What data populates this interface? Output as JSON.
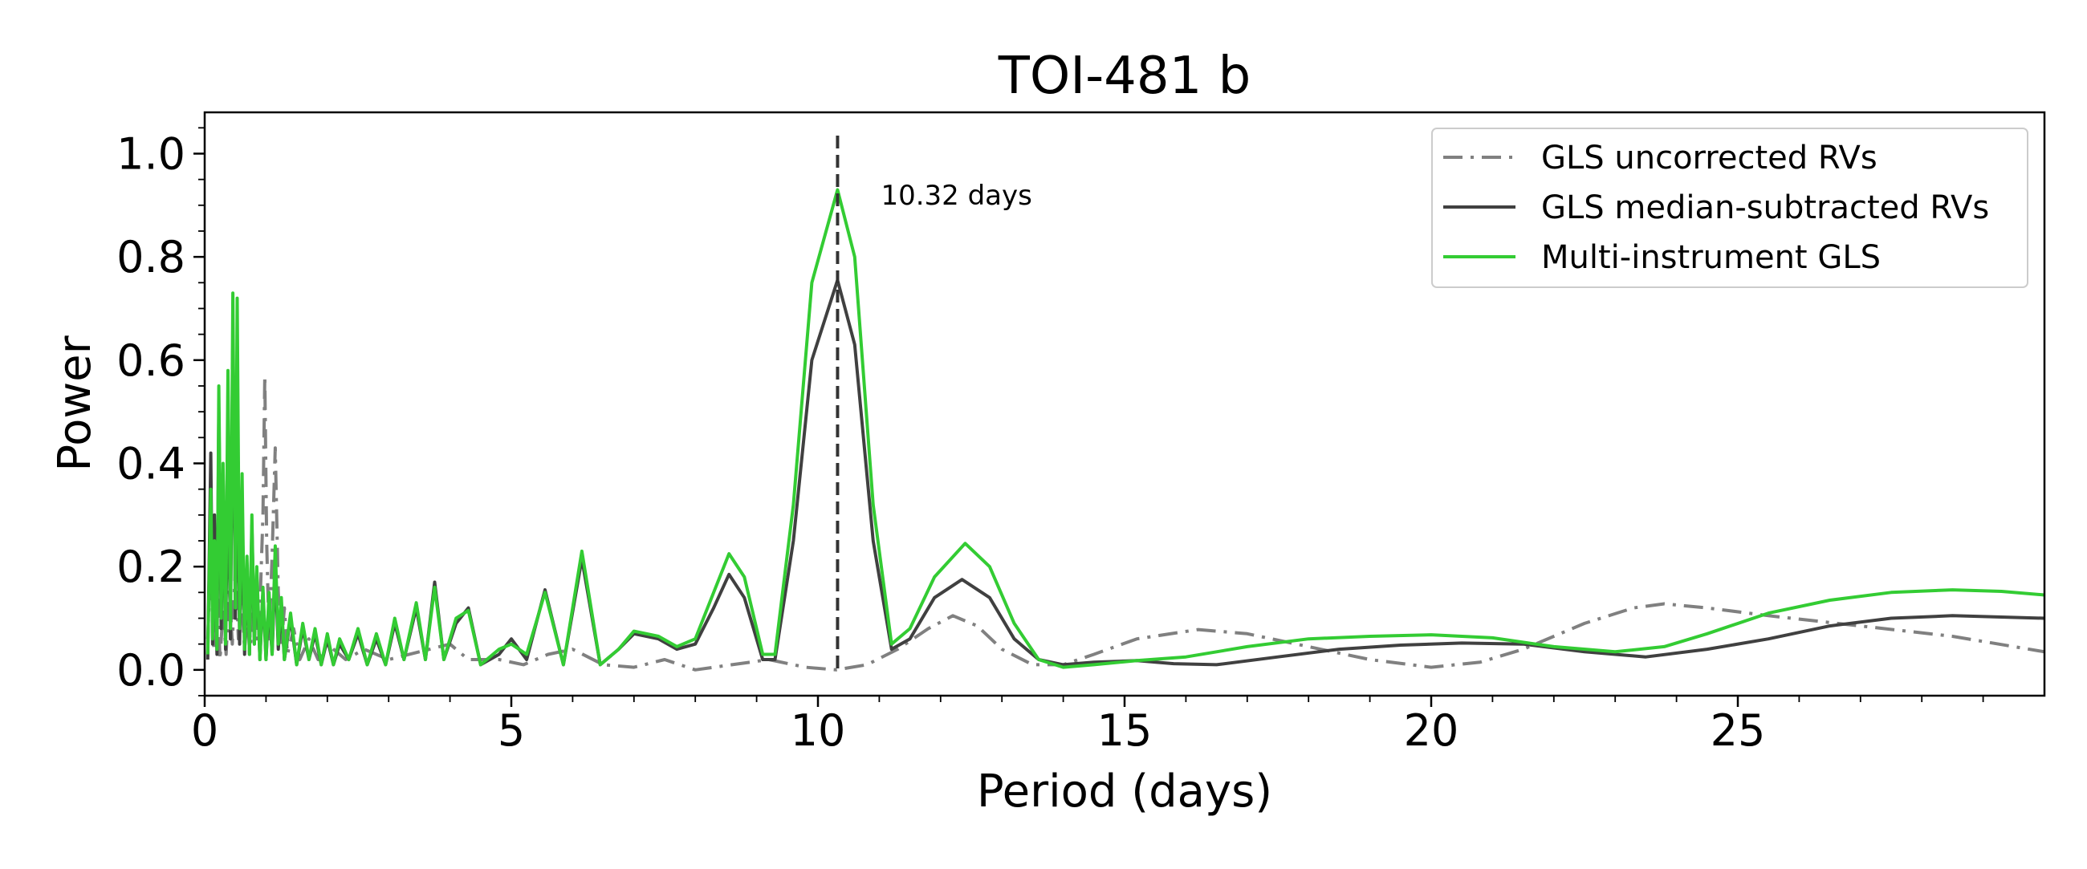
{
  "chart_data": {
    "type": "line",
    "title": "TOI-481 b",
    "xlabel": "Period (days)",
    "ylabel": "Power",
    "xlim": [
      0,
      30
    ],
    "ylim": [
      -0.05,
      1.08
    ],
    "xticks": [
      0,
      5,
      10,
      15,
      20,
      25
    ],
    "xtick_labels": [
      "0",
      "5",
      "10",
      "15",
      "20",
      "25"
    ],
    "yticks": [
      0.0,
      0.2,
      0.4,
      0.6,
      0.8,
      1.0
    ],
    "ytick_labels": [
      "0.0",
      "0.2",
      "0.4",
      "0.6",
      "0.8",
      "1.0"
    ],
    "grid": false,
    "legend_position": "top-right",
    "annotation": {
      "text": "10.32 days",
      "x": 10.32
    },
    "series": [
      {
        "name": "GLS uncorrected RVs",
        "color": "#808080",
        "style": "dashdot",
        "points": [
          [
            0.05,
            0.06
          ],
          [
            0.1,
            0.22
          ],
          [
            0.15,
            0.04
          ],
          [
            0.2,
            0.18
          ],
          [
            0.25,
            0.02
          ],
          [
            0.3,
            0.12
          ],
          [
            0.35,
            0.03
          ],
          [
            0.4,
            0.16
          ],
          [
            0.45,
            0.05
          ],
          [
            0.5,
            0.2
          ],
          [
            0.55,
            0.06
          ],
          [
            0.6,
            0.15
          ],
          [
            0.65,
            0.04
          ],
          [
            0.7,
            0.11
          ],
          [
            0.75,
            0.05
          ],
          [
            0.8,
            0.17
          ],
          [
            0.85,
            0.06
          ],
          [
            0.9,
            0.12
          ],
          [
            0.95,
            0.3
          ],
          [
            0.98,
            0.57
          ],
          [
            1.01,
            0.25
          ],
          [
            1.05,
            0.06
          ],
          [
            1.1,
            0.22
          ],
          [
            1.15,
            0.43
          ],
          [
            1.2,
            0.15
          ],
          [
            1.25,
            0.05
          ],
          [
            1.3,
            0.12
          ],
          [
            1.35,
            0.03
          ],
          [
            1.45,
            0.08
          ],
          [
            1.55,
            0.02
          ],
          [
            1.7,
            0.06
          ],
          [
            1.85,
            0.02
          ],
          [
            2.0,
            0.05
          ],
          [
            2.3,
            0.02
          ],
          [
            2.6,
            0.04
          ],
          [
            3.0,
            0.02
          ],
          [
            3.5,
            0.035
          ],
          [
            4.0,
            0.05
          ],
          [
            4.3,
            0.02
          ],
          [
            4.8,
            0.02
          ],
          [
            5.2,
            0.01
          ],
          [
            5.6,
            0.03
          ],
          [
            6.0,
            0.04
          ],
          [
            6.5,
            0.01
          ],
          [
            7.0,
            0.005
          ],
          [
            7.5,
            0.02
          ],
          [
            8.0,
            0.0
          ],
          [
            8.6,
            0.01
          ],
          [
            9.2,
            0.02
          ],
          [
            9.8,
            0.005
          ],
          [
            10.3,
            0.0
          ],
          [
            10.8,
            0.01
          ],
          [
            11.3,
            0.04
          ],
          [
            11.8,
            0.08
          ],
          [
            12.2,
            0.105
          ],
          [
            12.6,
            0.085
          ],
          [
            13.0,
            0.04
          ],
          [
            13.5,
            0.01
          ],
          [
            14.0,
            0.01
          ],
          [
            14.5,
            0.03
          ],
          [
            15.2,
            0.06
          ],
          [
            16.2,
            0.078
          ],
          [
            17.0,
            0.07
          ],
          [
            18.0,
            0.045
          ],
          [
            19.0,
            0.02
          ],
          [
            20.0,
            0.005
          ],
          [
            20.8,
            0.015
          ],
          [
            21.5,
            0.04
          ],
          [
            22.5,
            0.09
          ],
          [
            23.3,
            0.12
          ],
          [
            23.8,
            0.128
          ],
          [
            24.5,
            0.12
          ],
          [
            25.5,
            0.105
          ],
          [
            27.0,
            0.085
          ],
          [
            28.5,
            0.065
          ],
          [
            30.0,
            0.035
          ]
        ]
      },
      {
        "name": "GLS median-subtracted RVs",
        "color": "#404040",
        "style": "solid",
        "points": [
          [
            0.05,
            0.02
          ],
          [
            0.1,
            0.42
          ],
          [
            0.13,
            0.05
          ],
          [
            0.16,
            0.3
          ],
          [
            0.2,
            0.03
          ],
          [
            0.23,
            0.5
          ],
          [
            0.27,
            0.08
          ],
          [
            0.3,
            0.38
          ],
          [
            0.34,
            0.04
          ],
          [
            0.38,
            0.42
          ],
          [
            0.42,
            0.06
          ],
          [
            0.46,
            0.65
          ],
          [
            0.5,
            0.1
          ],
          [
            0.53,
            0.5
          ],
          [
            0.57,
            0.05
          ],
          [
            0.61,
            0.33
          ],
          [
            0.65,
            0.03
          ],
          [
            0.69,
            0.2
          ],
          [
            0.73,
            0.03
          ],
          [
            0.77,
            0.28
          ],
          [
            0.81,
            0.05
          ],
          [
            0.85,
            0.18
          ],
          [
            0.9,
            0.02
          ],
          [
            0.95,
            0.15
          ],
          [
            1.0,
            0.02
          ],
          [
            1.05,
            0.13
          ],
          [
            1.1,
            0.03
          ],
          [
            1.15,
            0.2
          ],
          [
            1.2,
            0.04
          ],
          [
            1.25,
            0.12
          ],
          [
            1.3,
            0.02
          ],
          [
            1.4,
            0.1
          ],
          [
            1.5,
            0.01
          ],
          [
            1.6,
            0.08
          ],
          [
            1.7,
            0.02
          ],
          [
            1.8,
            0.07
          ],
          [
            1.9,
            0.01
          ],
          [
            2.0,
            0.06
          ],
          [
            2.1,
            0.01
          ],
          [
            2.2,
            0.05
          ],
          [
            2.35,
            0.02
          ],
          [
            2.5,
            0.07
          ],
          [
            2.65,
            0.01
          ],
          [
            2.8,
            0.06
          ],
          [
            2.95,
            0.01
          ],
          [
            3.1,
            0.09
          ],
          [
            3.25,
            0.02
          ],
          [
            3.45,
            0.12
          ],
          [
            3.6,
            0.02
          ],
          [
            3.75,
            0.17
          ],
          [
            3.9,
            0.02
          ],
          [
            4.1,
            0.09
          ],
          [
            4.3,
            0.12
          ],
          [
            4.5,
            0.01
          ],
          [
            4.8,
            0.03
          ],
          [
            5.0,
            0.06
          ],
          [
            5.25,
            0.02
          ],
          [
            5.55,
            0.155
          ],
          [
            5.85,
            0.01
          ],
          [
            6.15,
            0.215
          ],
          [
            6.45,
            0.01
          ],
          [
            6.75,
            0.04
          ],
          [
            7.0,
            0.07
          ],
          [
            7.4,
            0.06
          ],
          [
            7.7,
            0.04
          ],
          [
            8.0,
            0.05
          ],
          [
            8.3,
            0.12
          ],
          [
            8.55,
            0.185
          ],
          [
            8.8,
            0.14
          ],
          [
            9.1,
            0.02
          ],
          [
            9.3,
            0.02
          ],
          [
            9.6,
            0.25
          ],
          [
            9.9,
            0.6
          ],
          [
            10.32,
            0.755
          ],
          [
            10.6,
            0.63
          ],
          [
            10.9,
            0.25
          ],
          [
            11.2,
            0.04
          ],
          [
            11.5,
            0.06
          ],
          [
            11.9,
            0.14
          ],
          [
            12.35,
            0.175
          ],
          [
            12.8,
            0.14
          ],
          [
            13.2,
            0.06
          ],
          [
            13.6,
            0.02
          ],
          [
            14.0,
            0.01
          ],
          [
            14.5,
            0.015
          ],
          [
            15.2,
            0.018
          ],
          [
            15.8,
            0.012
          ],
          [
            16.5,
            0.01
          ],
          [
            17.5,
            0.025
          ],
          [
            18.5,
            0.04
          ],
          [
            19.5,
            0.048
          ],
          [
            20.5,
            0.052
          ],
          [
            21.5,
            0.05
          ],
          [
            22.5,
            0.035
          ],
          [
            23.5,
            0.025
          ],
          [
            24.5,
            0.04
          ],
          [
            25.5,
            0.06
          ],
          [
            26.5,
            0.085
          ],
          [
            27.5,
            0.1
          ],
          [
            28.5,
            0.105
          ],
          [
            30.0,
            0.1
          ]
        ]
      },
      {
        "name": "Multi-instrument GLS",
        "color": "#33cc33",
        "style": "solid",
        "points": [
          [
            0.05,
            0.03
          ],
          [
            0.1,
            0.35
          ],
          [
            0.13,
            0.06
          ],
          [
            0.16,
            0.25
          ],
          [
            0.2,
            0.04
          ],
          [
            0.23,
            0.55
          ],
          [
            0.27,
            0.1
          ],
          [
            0.3,
            0.4
          ],
          [
            0.34,
            0.05
          ],
          [
            0.38,
            0.58
          ],
          [
            0.42,
            0.08
          ],
          [
            0.46,
            0.73
          ],
          [
            0.5,
            0.12
          ],
          [
            0.53,
            0.72
          ],
          [
            0.57,
            0.08
          ],
          [
            0.61,
            0.38
          ],
          [
            0.65,
            0.04
          ],
          [
            0.69,
            0.22
          ],
          [
            0.73,
            0.03
          ],
          [
            0.77,
            0.3
          ],
          [
            0.81,
            0.05
          ],
          [
            0.85,
            0.2
          ],
          [
            0.9,
            0.02
          ],
          [
            0.95,
            0.16
          ],
          [
            1.0,
            0.02
          ],
          [
            1.05,
            0.15
          ],
          [
            1.1,
            0.03
          ],
          [
            1.15,
            0.24
          ],
          [
            1.2,
            0.05
          ],
          [
            1.25,
            0.14
          ],
          [
            1.3,
            0.02
          ],
          [
            1.4,
            0.11
          ],
          [
            1.5,
            0.01
          ],
          [
            1.6,
            0.09
          ],
          [
            1.7,
            0.02
          ],
          [
            1.8,
            0.08
          ],
          [
            1.9,
            0.01
          ],
          [
            2.0,
            0.07
          ],
          [
            2.1,
            0.01
          ],
          [
            2.2,
            0.06
          ],
          [
            2.35,
            0.02
          ],
          [
            2.5,
            0.08
          ],
          [
            2.65,
            0.01
          ],
          [
            2.8,
            0.07
          ],
          [
            2.95,
            0.01
          ],
          [
            3.1,
            0.1
          ],
          [
            3.25,
            0.02
          ],
          [
            3.45,
            0.13
          ],
          [
            3.6,
            0.02
          ],
          [
            3.75,
            0.16
          ],
          [
            3.9,
            0.02
          ],
          [
            4.1,
            0.1
          ],
          [
            4.3,
            0.115
          ],
          [
            4.5,
            0.01
          ],
          [
            4.8,
            0.04
          ],
          [
            5.0,
            0.05
          ],
          [
            5.25,
            0.03
          ],
          [
            5.55,
            0.15
          ],
          [
            5.85,
            0.01
          ],
          [
            6.15,
            0.23
          ],
          [
            6.45,
            0.01
          ],
          [
            6.75,
            0.04
          ],
          [
            7.0,
            0.075
          ],
          [
            7.4,
            0.065
          ],
          [
            7.7,
            0.045
          ],
          [
            8.0,
            0.06
          ],
          [
            8.3,
            0.15
          ],
          [
            8.55,
            0.225
          ],
          [
            8.8,
            0.18
          ],
          [
            9.1,
            0.03
          ],
          [
            9.3,
            0.03
          ],
          [
            9.6,
            0.32
          ],
          [
            9.9,
            0.75
          ],
          [
            10.32,
            0.93
          ],
          [
            10.6,
            0.8
          ],
          [
            10.9,
            0.32
          ],
          [
            11.2,
            0.05
          ],
          [
            11.5,
            0.08
          ],
          [
            11.9,
            0.18
          ],
          [
            12.4,
            0.245
          ],
          [
            12.8,
            0.2
          ],
          [
            13.2,
            0.09
          ],
          [
            13.6,
            0.02
          ],
          [
            14.0,
            0.005
          ],
          [
            14.5,
            0.01
          ],
          [
            15.2,
            0.018
          ],
          [
            16.0,
            0.025
          ],
          [
            17.0,
            0.045
          ],
          [
            18.0,
            0.06
          ],
          [
            19.0,
            0.065
          ],
          [
            20.0,
            0.068
          ],
          [
            21.0,
            0.062
          ],
          [
            22.0,
            0.045
          ],
          [
            23.0,
            0.035
          ],
          [
            23.8,
            0.045
          ],
          [
            24.5,
            0.07
          ],
          [
            25.5,
            0.11
          ],
          [
            26.5,
            0.135
          ],
          [
            27.5,
            0.15
          ],
          [
            28.5,
            0.155
          ],
          [
            29.3,
            0.152
          ],
          [
            30.0,
            0.145
          ]
        ]
      }
    ]
  }
}
